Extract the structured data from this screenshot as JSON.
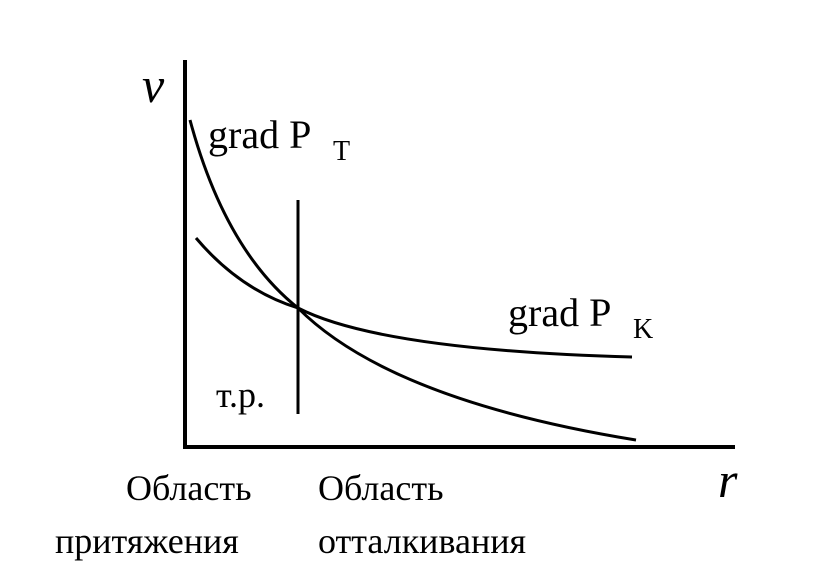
{
  "axes": {
    "y_label": "v",
    "x_label": "r"
  },
  "curves": [
    {
      "label": "grad P",
      "subscript": "T"
    },
    {
      "label": "grad P",
      "subscript": "K"
    }
  ],
  "equilibrium_label": "т.р.",
  "regions": [
    {
      "line1": "Область",
      "line2": "притяжения"
    },
    {
      "line1": "Область",
      "line2": "отталкивания"
    }
  ]
}
